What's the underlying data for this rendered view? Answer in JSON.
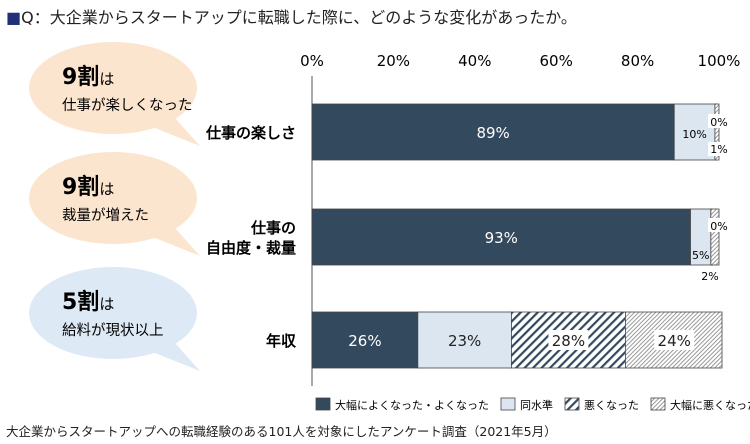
{
  "title": "Q：大企業からスタートアップに転職した際に、どのような変化があったか。",
  "title_marker": "■",
  "note": "大企業からスタートアップへの転職経験のある101人を対象にしたアンケート調査（2021年5月）",
  "bubbles": [
    {
      "big": "9割",
      "particle": "は",
      "text": "仕事が楽しくなった",
      "color": "#fbe5cf"
    },
    {
      "big": "9割",
      "particle": "は",
      "text": "裁量が増えた",
      "color": "#fbe5cf"
    },
    {
      "big": "5割",
      "particle": "は",
      "text": "給料が現状以上",
      "color": "#dde9f5"
    }
  ],
  "chart_data": {
    "type": "bar",
    "orientation": "horizontal",
    "stacked": true,
    "categories": [
      [
        "仕事の楽しさ"
      ],
      [
        "仕事の",
        "自由度・裁量"
      ],
      [
        "年収"
      ]
    ],
    "xlim": [
      0,
      100
    ],
    "ticks": [
      "0%",
      "20%",
      "40%",
      "60%",
      "80%",
      "100%"
    ],
    "legend_position": "bottom",
    "series": [
      {
        "name": "大幅によくなった・よくなった",
        "values": [
          89,
          93,
          26
        ],
        "color": "#33495e",
        "pattern": "solid"
      },
      {
        "name": "同水準",
        "values": [
          10,
          5,
          23
        ],
        "color": "#dce6f0",
        "pattern": "solid"
      },
      {
        "name": "悪くなった",
        "values": [
          0,
          0,
          28
        ],
        "color": "#33495e",
        "pattern": "wide-diagonal"
      },
      {
        "name": "大幅に悪くなった",
        "values": [
          1,
          2,
          24
        ],
        "color": "#999999",
        "pattern": "fine-diagonal"
      }
    ],
    "labels": [
      [
        "89%",
        "10%",
        "0%",
        "1%"
      ],
      [
        "93%",
        "5%",
        "0%",
        "2%"
      ],
      [
        "26%",
        "23%",
        "28%",
        "24%"
      ]
    ]
  }
}
